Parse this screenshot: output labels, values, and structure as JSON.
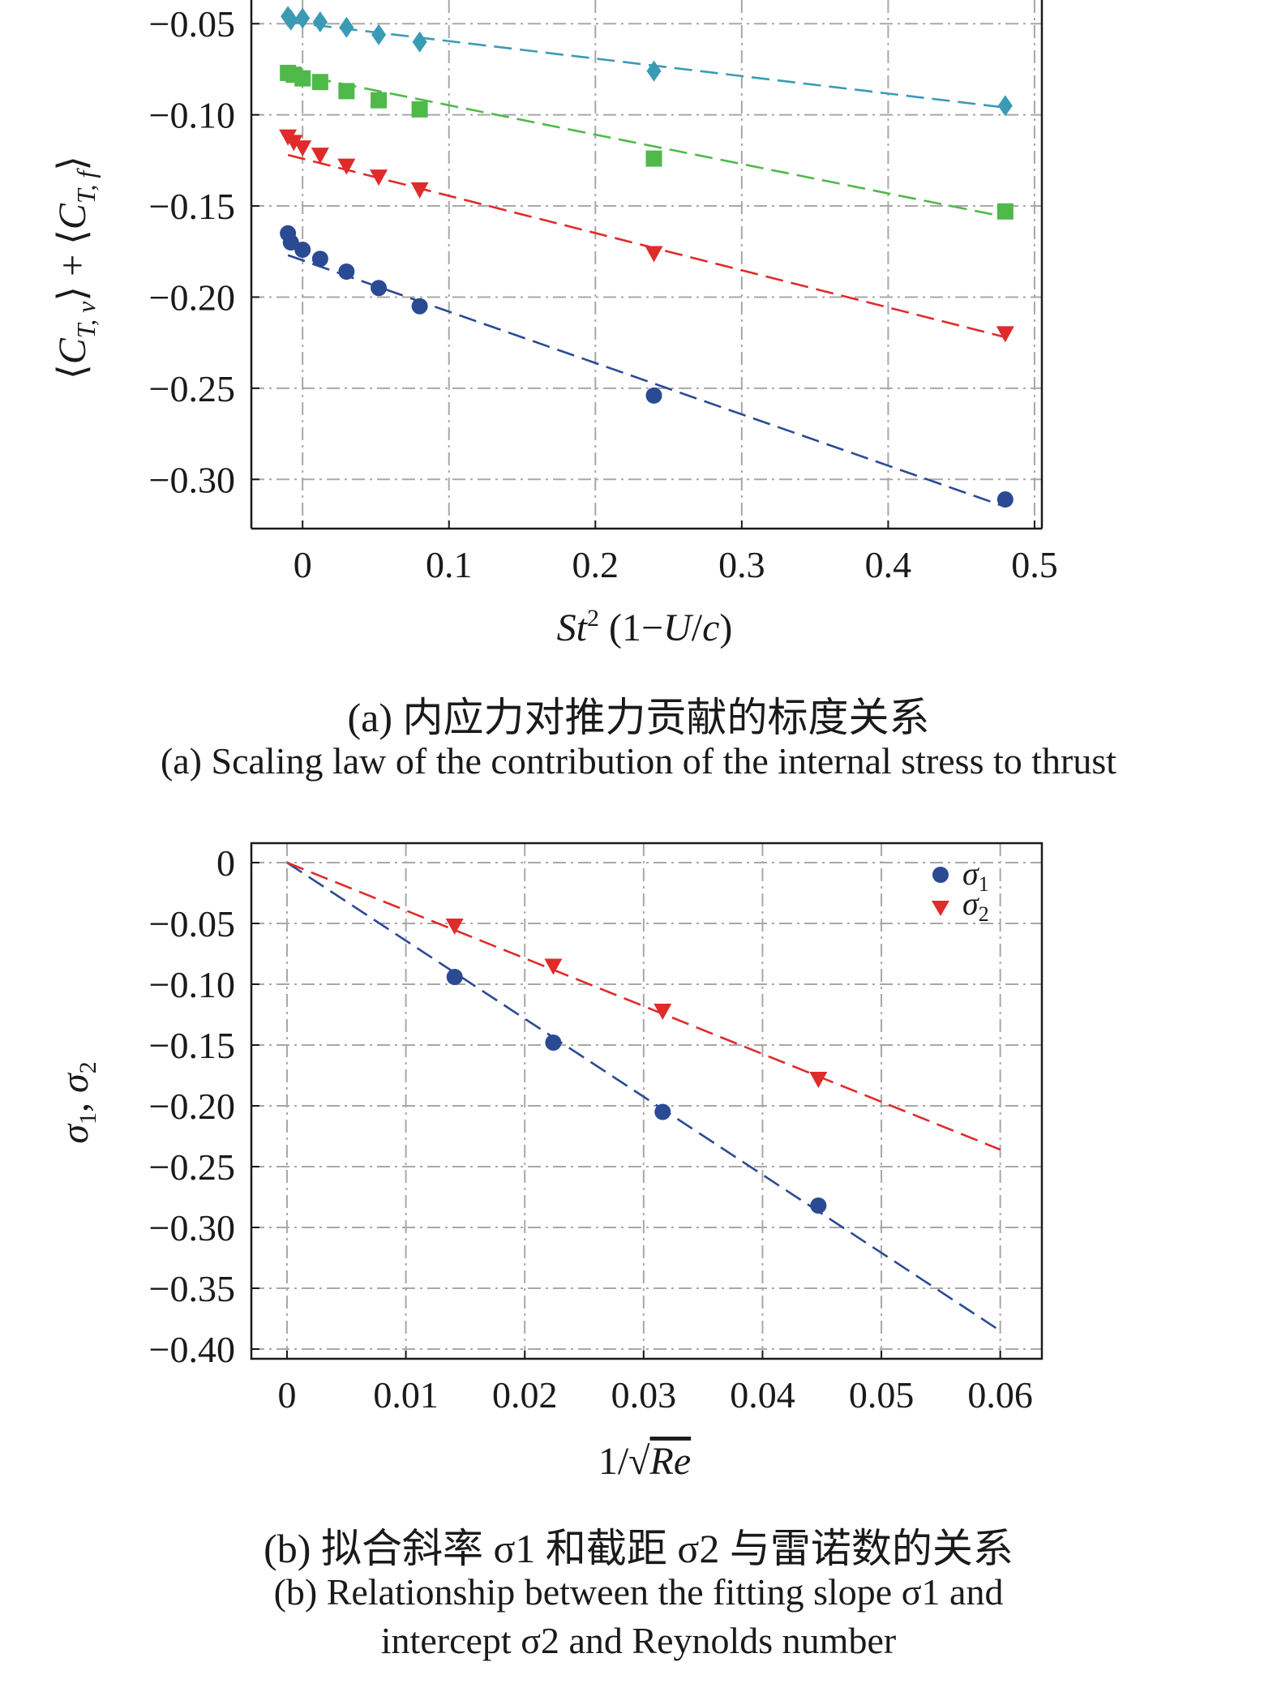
{
  "chart_data": [
    {
      "type": "scatter",
      "ylabel": "⟨C_{T,v}⟩ + ⟨C_{T,f}⟩",
      "xlabel": "St² (1−U/c)",
      "xlim": [
        -0.035,
        0.505
      ],
      "ylim": [
        -0.327,
        -0.037
      ],
      "x_ticks": [
        0,
        0.1,
        0.2,
        0.3,
        0.4,
        0.5
      ],
      "x_tick_labels": [
        "0",
        "0.1",
        "0.2",
        "0.3",
        "0.4",
        "0.5"
      ],
      "y_ticks": [
        -0.05,
        -0.1,
        -0.15,
        -0.2,
        -0.25,
        -0.3
      ],
      "y_tick_labels": [
        "−0.05",
        "−0.10",
        "−0.15",
        "−0.20",
        "−0.25",
        "−0.30"
      ],
      "grid": true,
      "series": [
        {
          "marker": "diamond",
          "color": "#3a9bb5",
          "x": [
            -0.01,
            -0.008,
            0.0,
            0.012,
            0.03,
            0.052,
            0.08,
            0.24,
            0.48
          ],
          "y": [
            -0.046,
            -0.048,
            -0.047,
            -0.049,
            -0.052,
            -0.056,
            -0.06,
            -0.076,
            -0.095
          ],
          "fit": [
            [
              -0.01,
              -0.049
            ],
            [
              0.48,
              -0.096
            ]
          ]
        },
        {
          "marker": "square",
          "color": "#4fb94a",
          "x": [
            -0.01,
            -0.006,
            0.0,
            0.012,
            0.03,
            0.052,
            0.08,
            0.24,
            0.48
          ],
          "y": [
            -0.077,
            -0.078,
            -0.08,
            -0.082,
            -0.087,
            -0.092,
            -0.097,
            -0.124,
            -0.153
          ],
          "fit": [
            [
              -0.01,
              -0.077
            ],
            [
              0.48,
              -0.156
            ]
          ]
        },
        {
          "marker": "triangle-down",
          "color": "#e02b2b",
          "x": [
            -0.01,
            -0.006,
            0.0,
            0.012,
            0.03,
            0.052,
            0.08,
            0.24,
            0.48
          ],
          "y": [
            -0.112,
            -0.115,
            -0.118,
            -0.122,
            -0.128,
            -0.134,
            -0.141,
            -0.176,
            -0.22
          ],
          "fit": [
            [
              -0.01,
              -0.122
            ],
            [
              0.48,
              -0.222
            ]
          ]
        },
        {
          "marker": "circle",
          "color": "#2b4a94",
          "x": [
            -0.01,
            -0.008,
            0.0,
            0.012,
            0.03,
            0.052,
            0.08,
            0.24,
            0.48
          ],
          "y": [
            -0.165,
            -0.17,
            -0.174,
            -0.179,
            -0.186,
            -0.195,
            -0.205,
            -0.254,
            -0.311
          ],
          "fit": [
            [
              -0.01,
              -0.177
            ],
            [
              0.48,
              -0.315
            ]
          ]
        }
      ]
    },
    {
      "type": "scatter",
      "ylabel": "σ1, σ2",
      "xlabel": "1/√Re",
      "xlim": [
        -0.003,
        0.0635
      ],
      "ylim": [
        -0.408,
        0.016
      ],
      "x_ticks": [
        0,
        0.01,
        0.02,
        0.03,
        0.04,
        0.05,
        0.06
      ],
      "x_tick_labels": [
        "0",
        "0.01",
        "0.02",
        "0.03",
        "0.04",
        "0.05",
        "0.06"
      ],
      "y_ticks": [
        0,
        -0.05,
        -0.1,
        -0.15,
        -0.2,
        -0.25,
        -0.3,
        -0.35,
        -0.4
      ],
      "y_tick_labels": [
        "0",
        "−0.05",
        "−0.10",
        "−0.15",
        "−0.20",
        "−0.25",
        "−0.30",
        "−0.35",
        "−0.40"
      ],
      "grid": true,
      "legend": "top-right",
      "series": [
        {
          "name": "σ1",
          "marker": "circle",
          "color": "#2b4a94",
          "x": [
            0.0141,
            0.0224,
            0.0316,
            0.0447
          ],
          "y": [
            -0.094,
            -0.148,
            -0.205,
            -0.282
          ],
          "fit": [
            [
              0,
              0
            ],
            [
              0.06,
              -0.385
            ]
          ]
        },
        {
          "name": "σ2",
          "marker": "triangle-down",
          "color": "#e02b2b",
          "x": [
            0.0141,
            0.0224,
            0.0316,
            0.0447
          ],
          "y": [
            -0.052,
            -0.085,
            -0.122,
            -0.178
          ],
          "fit": [
            [
              0,
              0
            ],
            [
              0.06,
              -0.236
            ]
          ]
        }
      ]
    }
  ],
  "captions": {
    "a_zh": "(a) 内应力对推力贡献的标度关系",
    "a_en": "(a) Scaling law of the contribution of the internal stress to thrust",
    "b_zh": "(b) 拟合斜率 σ1 和截距 σ2 与雷诺数的关系",
    "b_en_1": "(b) Relationship between the fitting slope σ1 and",
    "b_en_2": "intercept σ2 and Reynolds number"
  }
}
